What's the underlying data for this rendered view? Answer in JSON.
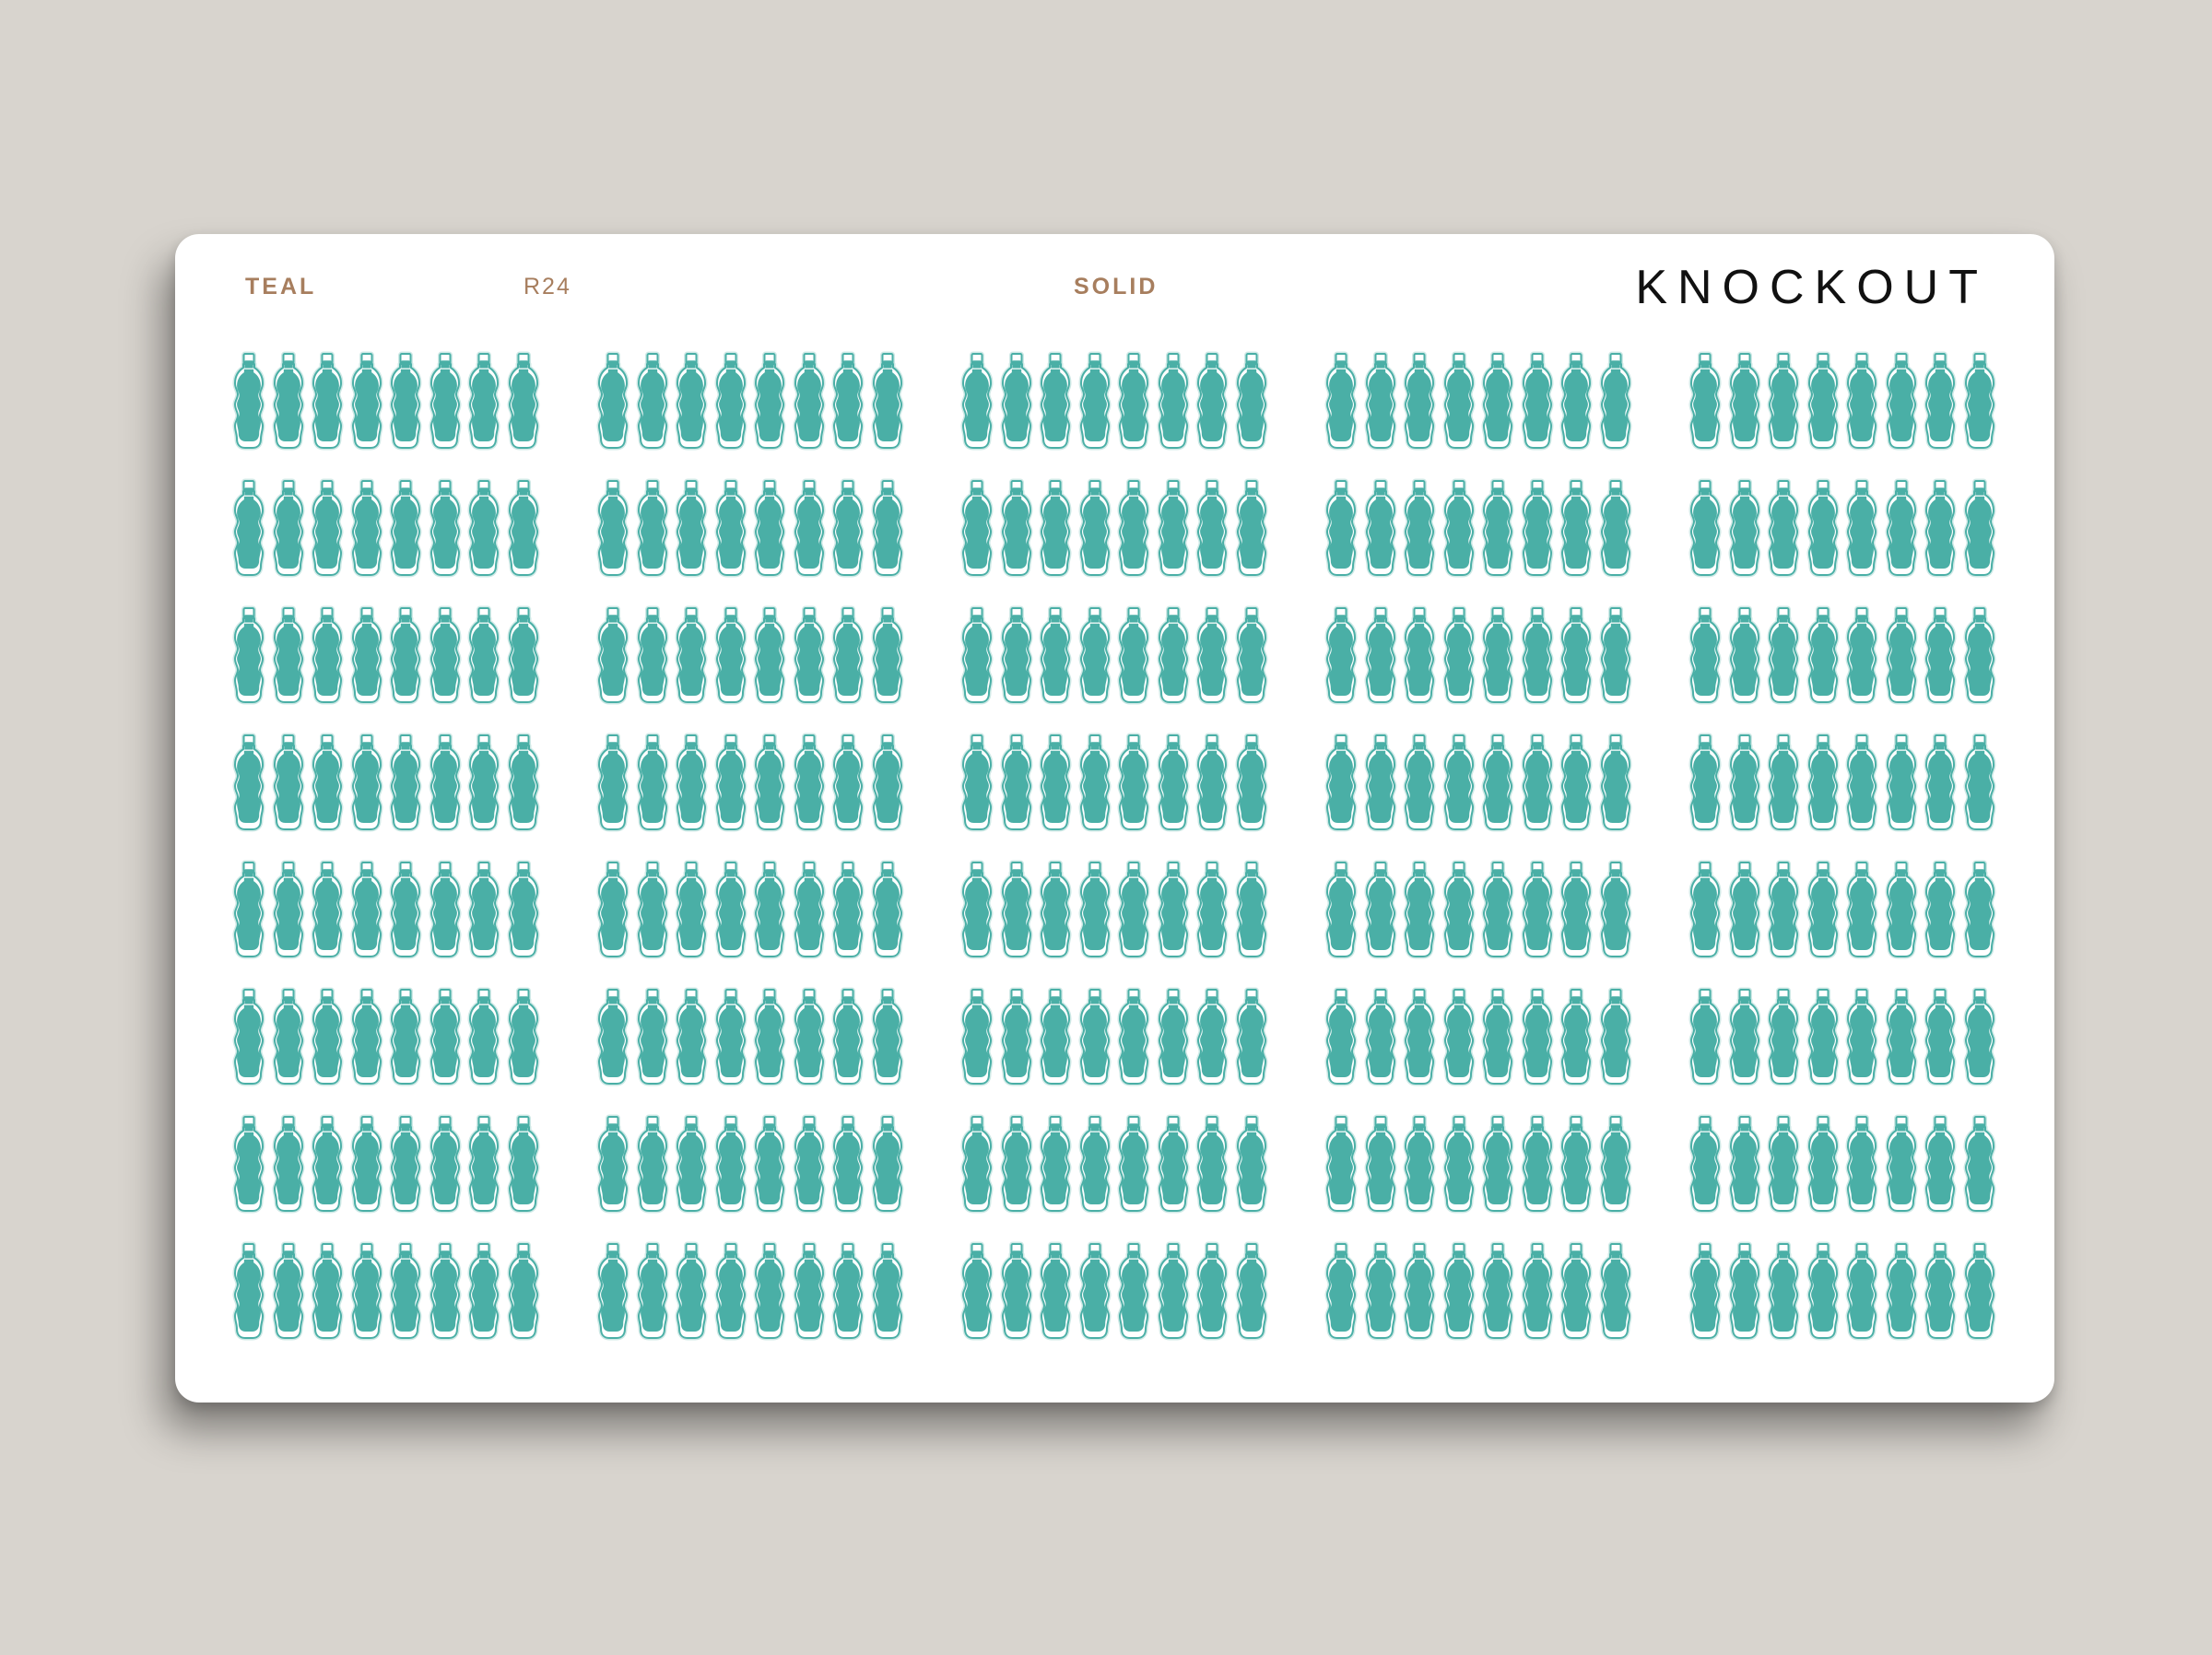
{
  "sheet": {
    "color_name": "TEAL",
    "code": "R24",
    "style": "SOLID",
    "brand": "KNOCKOUT"
  },
  "stickers": {
    "icon": "water-bottle-icon",
    "fill_color": "#4aafa6",
    "outline_color": "#cfe9e6",
    "blocks_per_row": 5,
    "block_rows": 8,
    "bottles_per_block": 8
  }
}
